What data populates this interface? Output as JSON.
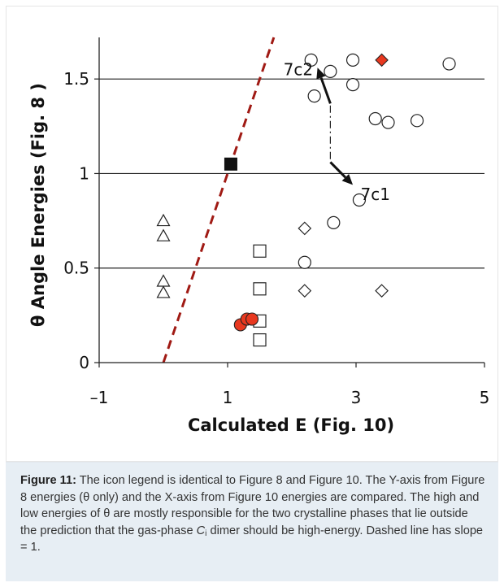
{
  "colors": {
    "dashed_line": "#a01a14",
    "filled_red": "#e8381f",
    "filled_black": "#111111",
    "caption_background": "#e7eef4"
  },
  "chart_data": {
    "type": "scatter",
    "xlabel": "Calculated E (Fig. 10)",
    "ylabel": "θ Angle Energies (Fig. 8 )",
    "xlim": [
      -1,
      5
    ],
    "ylim": [
      0,
      1.72
    ],
    "x_ticks": [
      -1,
      1,
      3,
      5
    ],
    "x_tick_labels": [
      "–1",
      "1",
      "3",
      "5"
    ],
    "y_ticks": [
      0,
      0.5,
      1,
      1.5
    ],
    "y_tick_labels": [
      "0",
      "0.5",
      "1",
      "1.5"
    ],
    "grid": "horizontal",
    "legend": "none",
    "series": [
      {
        "marker": "circle-open",
        "points": [
          [
            2.3,
            1.6
          ],
          [
            2.95,
            1.6
          ],
          [
            4.45,
            1.58
          ],
          [
            2.6,
            1.54
          ],
          [
            2.95,
            1.47
          ],
          [
            2.35,
            1.41
          ],
          [
            3.3,
            1.29
          ],
          [
            3.5,
            1.27
          ],
          [
            3.95,
            1.28
          ],
          [
            3.05,
            0.86
          ],
          [
            2.65,
            0.74
          ],
          [
            2.2,
            0.53
          ]
        ]
      },
      {
        "marker": "diamond-red",
        "points": [
          [
            3.4,
            1.6
          ]
        ]
      },
      {
        "marker": "square-black",
        "points": [
          [
            1.05,
            1.05
          ]
        ]
      },
      {
        "marker": "diamond-open",
        "points": [
          [
            2.2,
            0.71
          ],
          [
            2.2,
            0.38
          ],
          [
            3.4,
            0.38
          ]
        ]
      },
      {
        "marker": "square-open",
        "points": [
          [
            1.5,
            0.59
          ],
          [
            1.5,
            0.39
          ],
          [
            1.5,
            0.22
          ],
          [
            1.5,
            0.12
          ]
        ]
      },
      {
        "marker": "triangle-open",
        "points": [
          [
            0,
            0.75
          ],
          [
            0,
            0.67
          ],
          [
            0,
            0.43
          ],
          [
            0,
            0.37
          ]
        ]
      },
      {
        "marker": "circle-red",
        "points": [
          [
            1.2,
            0.2
          ],
          [
            1.3,
            0.23
          ],
          [
            1.38,
            0.23
          ]
        ]
      }
    ],
    "dashed_line": {
      "slope": 1,
      "points": [
        [
          0,
          0
        ],
        [
          1.72,
          1.72
        ]
      ]
    },
    "annotations": [
      {
        "text": "7c2",
        "at": [
          2.1,
          1.55
        ],
        "arrow_from": [
          2.6,
          1.37
        ],
        "arrow_to": [
          2.4,
          1.56
        ]
      },
      {
        "text": "7c1",
        "at": [
          3.3,
          0.89
        ],
        "arrow_from": [
          2.6,
          1.06
        ],
        "arrow_to": [
          2.95,
          0.94
        ]
      }
    ],
    "connector": {
      "from": [
        2.6,
        1.36
      ],
      "to": [
        2.6,
        1.07
      ],
      "style": "dash-dot"
    }
  },
  "caption": {
    "label": "Figure 11:",
    "text_part1": "The icon legend is identical to Figure 8 and Figure 10. The Y-axis from Figure 8 energies (θ only) and the X-axis from Figure 10 energies are compared. The high and low energies of θ are mostly responsible for the two crystalline phases that lie outside the prediction that the gas-phase ",
    "symbol": "C",
    "subscript": "i",
    "text_part2": " dimer should be high-energy. Dashed line has slope = 1."
  }
}
